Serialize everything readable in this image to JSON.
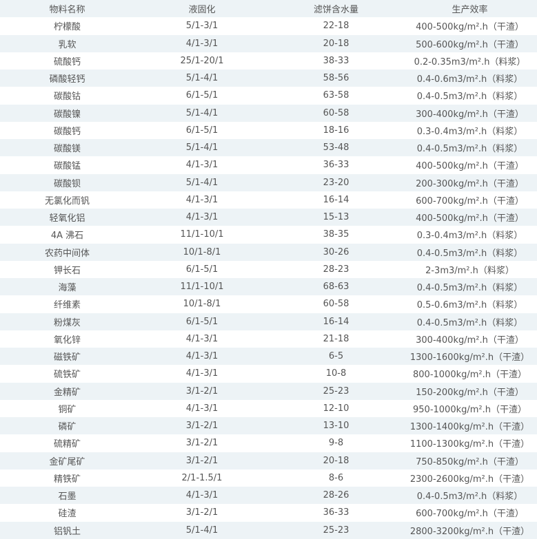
{
  "table": {
    "headers": [
      "物料名称",
      "液固化",
      "滤饼含水量",
      "生产效率"
    ],
    "rows": [
      [
        "柠檬酸",
        "5/1-3/1",
        "22-18",
        "400-500kg/m².h（干渣）"
      ],
      [
        "乳软",
        "4/1-3/1",
        "20-18",
        "500-600kg/m².h（干渣）"
      ],
      [
        "硫酸钙",
        "25/1-20/1",
        "38-33",
        "0.2-0.35m3/m².h（料浆）"
      ],
      [
        "磷酸轻钙",
        "5/1-4/1",
        "58-56",
        "0.4-0.6m3/m².h（料浆）"
      ],
      [
        "碳酸钴",
        "6/1-5/1",
        "63-58",
        "0.4-0.5m3/m².h（料浆）"
      ],
      [
        "碳酸镍",
        "5/1-4/1",
        "60-58",
        "300-400kg/m².h（干渣）"
      ],
      [
        "碳酸钙",
        "6/1-5/1",
        "18-16",
        "0.3-0.4m3/m².h（料浆）"
      ],
      [
        "碳酸镁",
        "5/1-4/1",
        "53-48",
        "0.4-0.5m3/m².h（料浆）"
      ],
      [
        "碳酸锰",
        "4/1-3/1",
        "36-33",
        "400-500kg/m².h（干渣）"
      ],
      [
        "碳酸钡",
        "5/1-4/1",
        "23-20",
        "200-300kg/m².h（干渣）"
      ],
      [
        "无氯化而钒",
        "4/1-3/1",
        "16-14",
        "600-700kg/m².h（干渣）"
      ],
      [
        "轻氧化铝",
        "4/1-3/1",
        "15-13",
        "400-500kg/m².h（干渣）"
      ],
      [
        "4A 沸石",
        "11/1-10/1",
        "38-35",
        "0.3-0.4m3/m².h（料浆）"
      ],
      [
        "农药中间体",
        "10/1-8/1",
        "30-26",
        "0.4-0.5m3/m².h（料浆）"
      ],
      [
        "钾长石",
        "6/1-5/1",
        "28-23",
        "2-3m3/m².h（料浆）"
      ],
      [
        "海藻",
        "11/1-10/1",
        "68-63",
        "0.4-0.5m3/m².h（料浆）"
      ],
      [
        "纤维素",
        "10/1-8/1",
        "60-58",
        "0.5-0.6m3/m².h（料浆）"
      ],
      [
        "粉煤灰",
        "6/1-5/1",
        "16-14",
        "0.4-0.5m3/m².h（料浆）"
      ],
      [
        "氧化锌",
        "4/1-3/1",
        "21-18",
        "300-400kg/m².h（干渣）"
      ],
      [
        "磁铁矿",
        "4/1-3/1",
        "6-5",
        "1300-1600kg/m².h（干渣）"
      ],
      [
        "硫铁矿",
        "4/1-3/1",
        "10-8",
        "800-1000kg/m².h（干渣）"
      ],
      [
        "金精矿",
        "3/1-2/1",
        "25-23",
        "150-200kg/m².h（干渣）"
      ],
      [
        "铜矿",
        "4/1-3/1",
        "12-10",
        "950-1000kg/m².h（干渣）"
      ],
      [
        "磷矿",
        "3/1-2/1",
        "13-10",
        "1300-1400kg/m².h（干渣）"
      ],
      [
        "硫精矿",
        "3/1-2/1",
        "9-8",
        "1100-1300kg/m².h（干渣）"
      ],
      [
        "金矿尾矿",
        "3/1-2/1",
        "20-18",
        "750-850kg/m².h（干渣）"
      ],
      [
        "精铁矿",
        "2/1-1.5/1",
        "8-6",
        "2300-2600kg/m².h（干渣）"
      ],
      [
        "石墨",
        "4/1-3/1",
        "28-26",
        "0.4-0.5m3/m².h（料浆）"
      ],
      [
        "硅渣",
        "3/1-2/1",
        "36-33",
        "600-700kg/m².h（干渣）"
      ],
      [
        "铝钒土",
        "5/1-4/1",
        "25-23",
        "2800-3200kg/m².h（干渣）"
      ]
    ]
  },
  "colors": {
    "stripe": "#edf3f6",
    "text": "#555555"
  }
}
